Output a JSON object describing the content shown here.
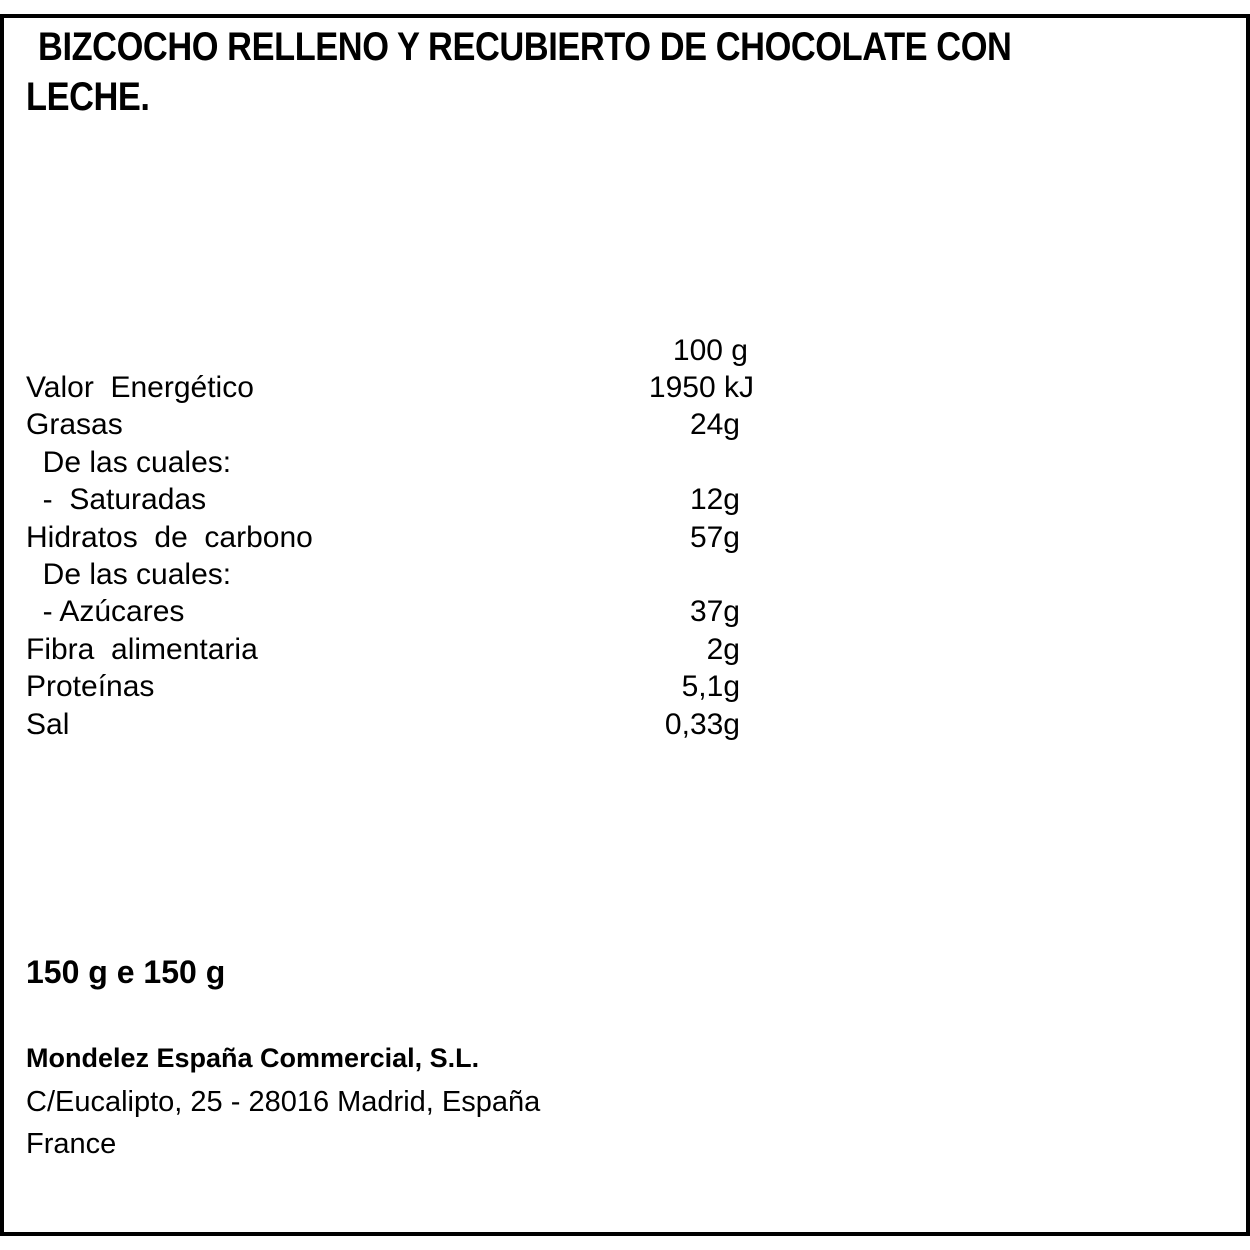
{
  "title": {
    "line1": "BIZCOCHO RELLENO Y RECUBIERTO DE CHOCOLATE CON",
    "line2": "LECHE."
  },
  "nutrition": {
    "header": "100 g",
    "rows": [
      {
        "label": "Valor  Energético",
        "value": "1950 kJ"
      },
      {
        "label": "Grasas",
        "value": "24g"
      },
      {
        "label": "  De las cuales:",
        "value": ""
      },
      {
        "label": "  -  Saturadas",
        "value": "12g"
      },
      {
        "label": "Hidratos  de  carbono",
        "value": "57g"
      },
      {
        "label": "  De las cuales:",
        "value": ""
      },
      {
        "label": "  - Azúcares",
        "value": "37g"
      },
      {
        "label": "Fibra  alimentaria",
        "value": "2g"
      },
      {
        "label": "Proteínas",
        "value": "5,1g"
      },
      {
        "label": "Sal",
        "value": "0,33g"
      }
    ]
  },
  "net_weight": "150 g e 150 g",
  "manufacturer": {
    "name": "Mondelez España Commercial, S.L.",
    "address": "C/Eucalipto, 25  - 28016 Madrid,  España",
    "country": "France"
  }
}
